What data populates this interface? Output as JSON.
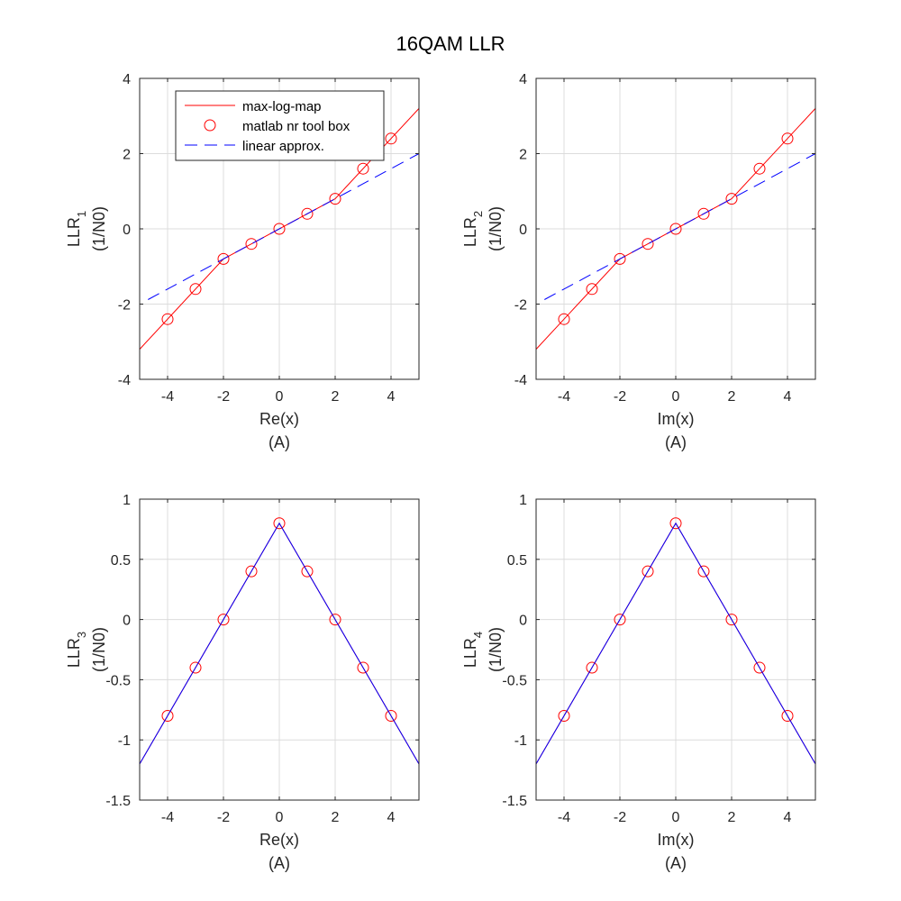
{
  "title": "16QAM LLR",
  "colors": {
    "max_log_map": "#ff0000",
    "nr_toolbox": "#ff0000",
    "linear_approx": "#0000ff",
    "axis": "#262626",
    "grid": "#dcdcdc"
  },
  "legend": {
    "entries": [
      {
        "label": "max-log-map",
        "style": "solid-line",
        "color": "#ff0000"
      },
      {
        "label": "matlab nr tool box",
        "style": "circle-marker",
        "color": "#ff0000"
      },
      {
        "label": "linear approx.",
        "style": "dashed-line",
        "color": "#0000ff"
      }
    ],
    "placement": "top-left of first subplot"
  },
  "chart_data": [
    {
      "type": "line",
      "xlabel": "Re(x)",
      "xunit": "(A)",
      "ylabel": "LLR",
      "ylabel_sub": "1",
      "yunit": "(1/N0)",
      "xlim": [
        -5,
        5
      ],
      "ylim": [
        -4,
        4
      ],
      "xticks": [
        -4,
        -2,
        0,
        2,
        4
      ],
      "yticks": [
        -4,
        -2,
        0,
        2,
        4
      ],
      "grid": true,
      "series": [
        {
          "name": "max-log-map",
          "style": "solid",
          "color": "#ff0000",
          "x": [
            -5,
            -2,
            2,
            5
          ],
          "y": [
            -3.2,
            -0.8,
            0.8,
            3.2
          ]
        },
        {
          "name": "matlab nr tool box",
          "style": "circle",
          "color": "#ff0000",
          "x": [
            -4,
            -3,
            -2,
            -1,
            0,
            1,
            2,
            3,
            4
          ],
          "y": [
            -2.4,
            -1.6,
            -0.8,
            -0.4,
            0,
            0.4,
            0.8,
            1.6,
            2.4
          ]
        },
        {
          "name": "linear approx.",
          "style": "dashed",
          "color": "#0000ff",
          "x": [
            -4.7,
            5
          ],
          "y": [
            -1.88,
            2.0
          ]
        }
      ]
    },
    {
      "type": "line",
      "xlabel": "Im(x)",
      "xunit": "(A)",
      "ylabel": "LLR",
      "ylabel_sub": "2",
      "yunit": "(1/N0)",
      "xlim": [
        -5,
        5
      ],
      "ylim": [
        -4,
        4
      ],
      "xticks": [
        -4,
        -2,
        0,
        2,
        4
      ],
      "yticks": [
        -4,
        -2,
        0,
        2,
        4
      ],
      "grid": true,
      "series": [
        {
          "name": "max-log-map",
          "style": "solid",
          "color": "#ff0000",
          "x": [
            -5,
            -2,
            2,
            5
          ],
          "y": [
            -3.2,
            -0.8,
            0.8,
            3.2
          ]
        },
        {
          "name": "matlab nr tool box",
          "style": "circle",
          "color": "#ff0000",
          "x": [
            -4,
            -3,
            -2,
            -1,
            0,
            1,
            2,
            3,
            4
          ],
          "y": [
            -2.4,
            -1.6,
            -0.8,
            -0.4,
            0,
            0.4,
            0.8,
            1.6,
            2.4
          ]
        },
        {
          "name": "linear approx.",
          "style": "dashed",
          "color": "#0000ff",
          "x": [
            -4.7,
            5
          ],
          "y": [
            -1.88,
            2.0
          ]
        }
      ]
    },
    {
      "type": "line",
      "xlabel": "Re(x)",
      "xunit": "(A)",
      "ylabel": "LLR",
      "ylabel_sub": "3",
      "yunit": "(1/N0)",
      "xlim": [
        -5,
        5
      ],
      "ylim": [
        -1.5,
        1
      ],
      "xticks": [
        -4,
        -2,
        0,
        2,
        4
      ],
      "yticks": [
        -1.5,
        -1,
        -0.5,
        0,
        0.5,
        1
      ],
      "grid": true,
      "series": [
        {
          "name": "max-log-map",
          "style": "solid",
          "color": "#ff0000",
          "x": [
            -5,
            0,
            5
          ],
          "y": [
            -1.2,
            0.8,
            -1.2
          ]
        },
        {
          "name": "matlab nr tool box",
          "style": "circle",
          "color": "#ff0000",
          "x": [
            -4,
            -3,
            -2,
            -1,
            0,
            1,
            2,
            3,
            4
          ],
          "y": [
            -0.8,
            -0.4,
            0,
            0.4,
            0.8,
            0.4,
            0,
            -0.4,
            -0.8
          ]
        },
        {
          "name": "linear approx.",
          "style": "solid-thin",
          "color": "#0000ff",
          "x": [
            -5,
            0,
            5
          ],
          "y": [
            -1.2,
            0.8,
            -1.2
          ]
        }
      ]
    },
    {
      "type": "line",
      "xlabel": "Im(x)",
      "xunit": "(A)",
      "ylabel": "LLR",
      "ylabel_sub": "4",
      "yunit": "(1/N0)",
      "xlim": [
        -5,
        5
      ],
      "ylim": [
        -1.5,
        1
      ],
      "xticks": [
        -4,
        -2,
        0,
        2,
        4
      ],
      "yticks": [
        -1.5,
        -1,
        -0.5,
        0,
        0.5,
        1
      ],
      "grid": true,
      "series": [
        {
          "name": "max-log-map",
          "style": "solid",
          "color": "#ff0000",
          "x": [
            -5,
            0,
            5
          ],
          "y": [
            -1.2,
            0.8,
            -1.2
          ]
        },
        {
          "name": "matlab nr tool box",
          "style": "circle",
          "color": "#ff0000",
          "x": [
            -4,
            -3,
            -2,
            -1,
            0,
            1,
            2,
            3,
            4
          ],
          "y": [
            -0.8,
            -0.4,
            0,
            0.4,
            0.8,
            0.4,
            0,
            -0.4,
            -0.8
          ]
        },
        {
          "name": "linear approx.",
          "style": "solid-thin",
          "color": "#0000ff",
          "x": [
            -5,
            0,
            5
          ],
          "y": [
            -1.2,
            0.8,
            -1.2
          ]
        }
      ]
    }
  ]
}
